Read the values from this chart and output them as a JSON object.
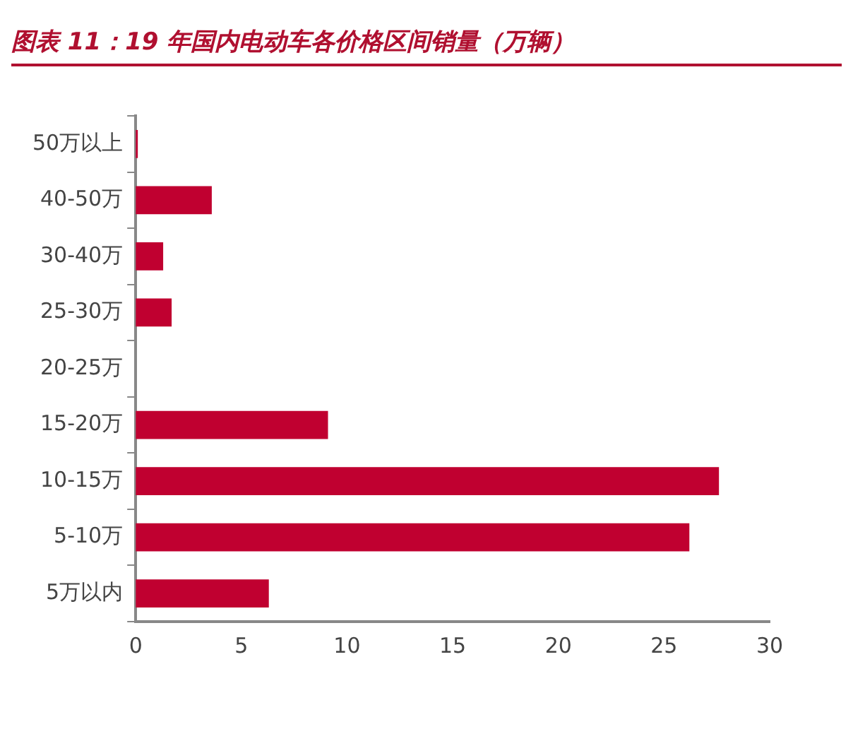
{
  "chart_data": {
    "type": "bar",
    "orientation": "horizontal",
    "title": "图表 11：19 年国内电动车各价格区间销量（万辆）",
    "categories": [
      "50万以上",
      "40-50万",
      "30-40万",
      "25-30万",
      "20-25万",
      "15-20万",
      "10-15万",
      "5-10万",
      "5万以内"
    ],
    "values": [
      0.1,
      3.6,
      1.3,
      1.7,
      0,
      9.1,
      27.6,
      26.2,
      6.3
    ],
    "color": "#c00030",
    "xlim": [
      0,
      30
    ],
    "xticks": [
      0,
      5,
      10,
      15,
      20,
      25,
      30
    ],
    "grid": false,
    "legend": false
  }
}
